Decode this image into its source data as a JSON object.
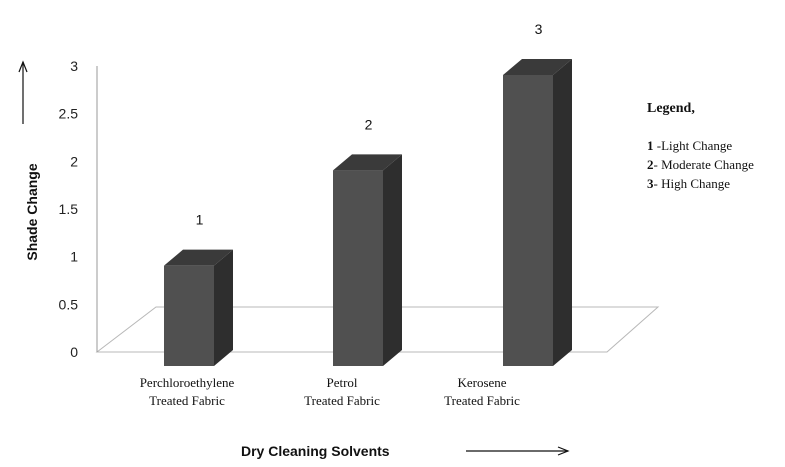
{
  "chart_data": {
    "type": "bar",
    "categories": [
      [
        "Perchloroethylene",
        "Treated Fabric"
      ],
      [
        "Petrol",
        "Treated Fabric"
      ],
      [
        "Kerosene",
        "Treated Fabric"
      ]
    ],
    "values": [
      1,
      2,
      3
    ],
    "data_labels": [
      "1",
      "2",
      "3"
    ],
    "ylabel": "Shade Change",
    "xlabel": "Dry Cleaning  Solvents",
    "ylim": [
      0,
      3
    ],
    "yticks": [
      "0",
      "0.5",
      "1",
      "1.5",
      "2",
      "2.5",
      "3"
    ],
    "grid": false,
    "bar_color": "#505050",
    "legend": {
      "title": "Legend,",
      "items": [
        {
          "key": "1",
          "text": " -Light Change"
        },
        {
          "key": "2",
          "text": "- Moderate Change"
        },
        {
          "key": "3",
          "text": "- High Change"
        }
      ]
    }
  }
}
